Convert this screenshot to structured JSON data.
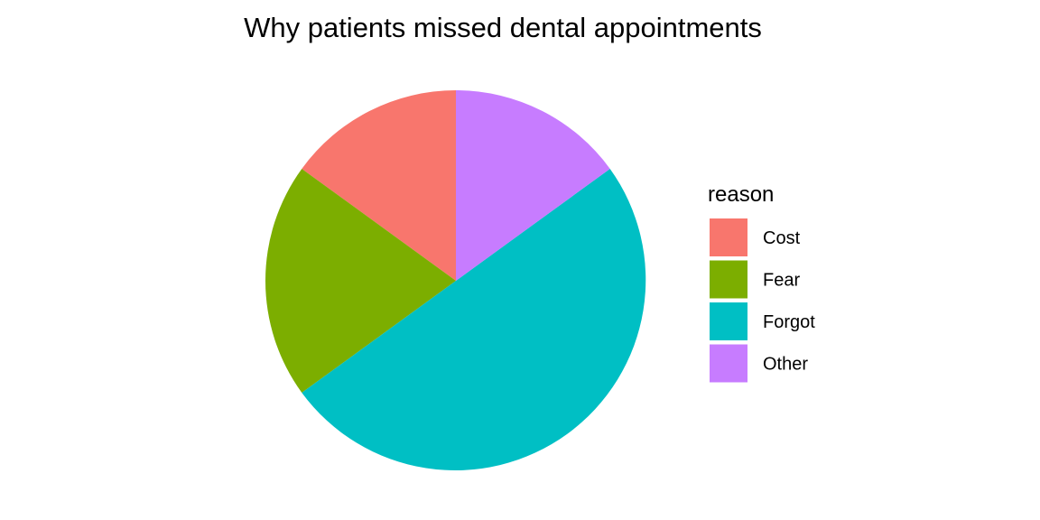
{
  "chart_data": {
    "type": "pie",
    "title": "Why patients missed dental appointments",
    "legend": {
      "title": "reason",
      "position": "right"
    },
    "categories": [
      "Cost",
      "Fear",
      "Forgot",
      "Other"
    ],
    "values": [
      15,
      20,
      50,
      15
    ],
    "colors": [
      "#F8766D",
      "#7CAE00",
      "#00BFC4",
      "#C77CFF"
    ],
    "start": "12 o'clock",
    "direction": "counterclockwise"
  }
}
